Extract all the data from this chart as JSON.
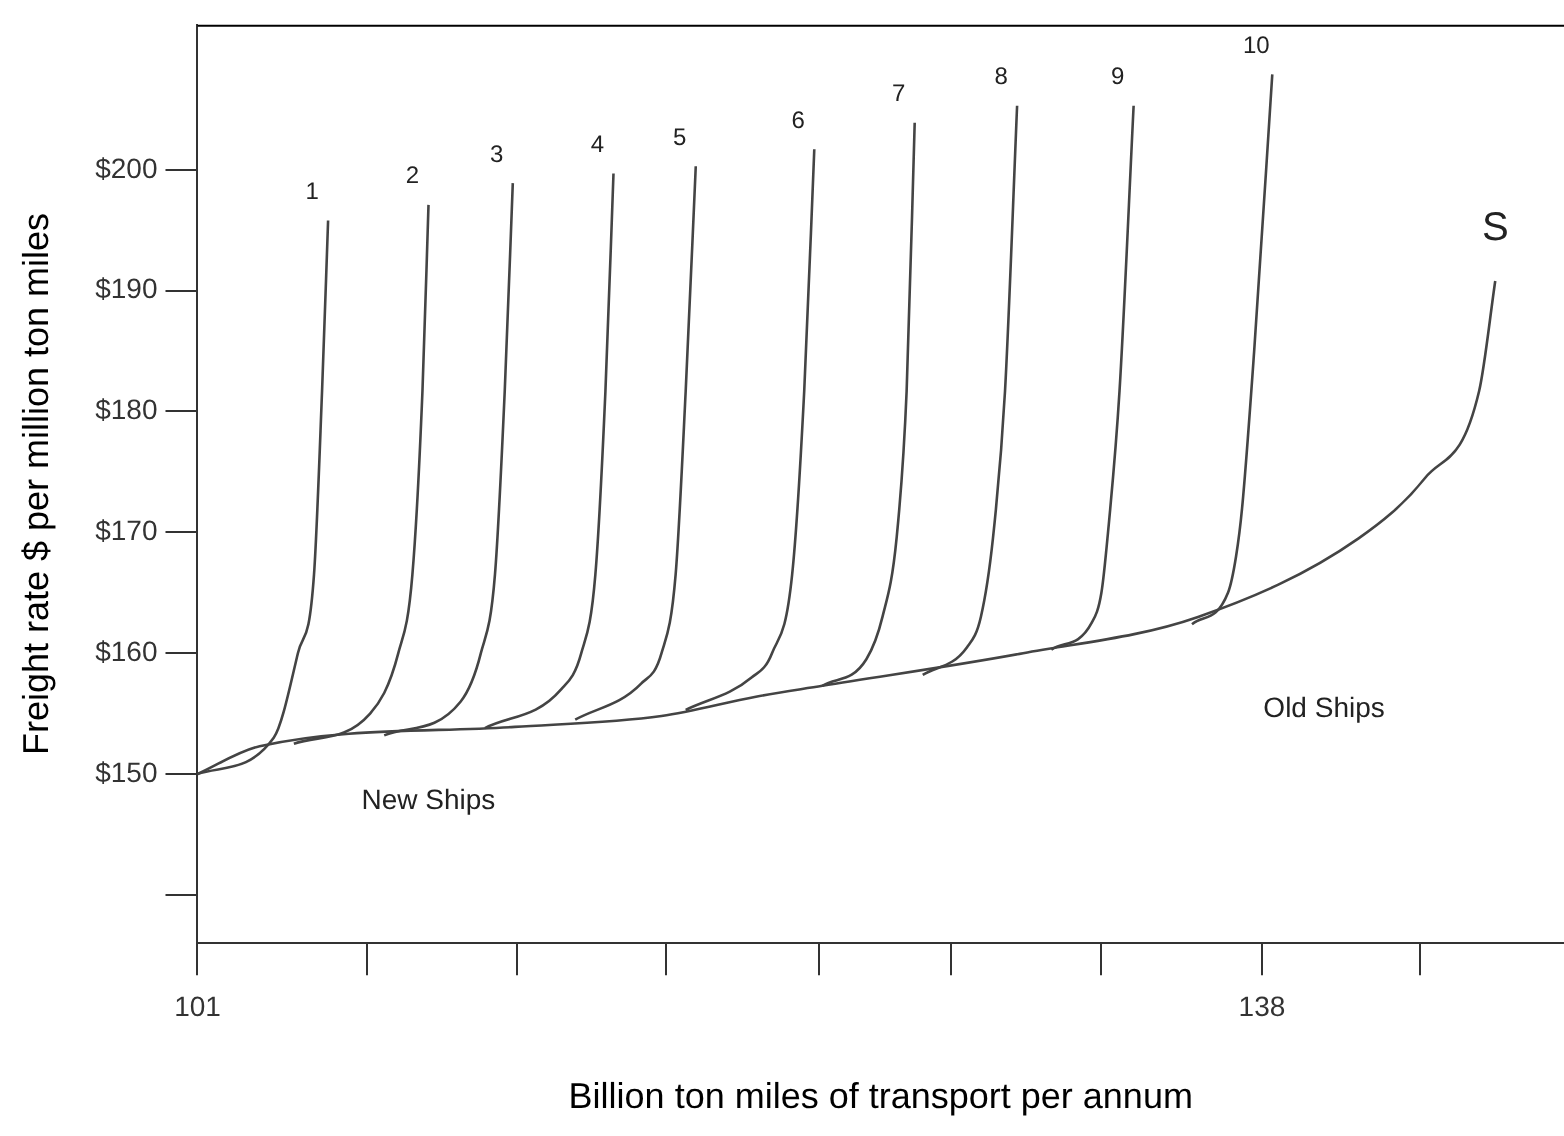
{
  "chart_data": {
    "type": "line",
    "xlabel": "Billion ton miles of transport per annum",
    "ylabel": "Freight rate $ per million ton miles",
    "xlim": [
      101,
      148.5
    ],
    "xticks": [
      101,
      {
        "value": 106.9,
        "label": null
      },
      {
        "value": 112.1,
        "label": null
      },
      {
        "value": 117.3,
        "label": null
      },
      {
        "value": 122.6,
        "label": null
      },
      {
        "value": 127.2,
        "label": null
      },
      {
        "value": 132.4,
        "label": null
      },
      138,
      {
        "value": 143.5,
        "label": null
      }
    ],
    "ylim": [
      136,
      212
    ],
    "yticks": [
      {
        "value": 140,
        "label": null
      },
      {
        "value": 150,
        "label": "$150"
      },
      {
        "value": 160,
        "label": "$160"
      },
      {
        "value": 170,
        "label": "$170"
      },
      {
        "value": 180,
        "label": "$180"
      },
      {
        "value": 190,
        "label": "$190"
      },
      {
        "value": 200,
        "label": "$200"
      }
    ],
    "grid": false,
    "legend": false,
    "marker": "none",
    "line_style": "solid",
    "series": [
      {
        "name": "S",
        "color": "#444444",
        "x": [
          101,
          103.16,
          112.03,
          117.13,
          120.41,
          122.72,
          129.7,
          135.78,
          141.36,
          143.67,
          145.55,
          146.11
        ],
        "values": [
          150,
          152.3,
          153.9,
          154.8,
          156.4,
          157.3,
          160,
          163,
          169.5,
          174.5,
          181.7,
          190.8
        ]
      },
      {
        "name": "1",
        "color": "#444444",
        "x": [
          101,
          103.65,
          104.49,
          105.05,
          105.33,
          105.54
        ],
        "values": [
          150,
          153,
          160,
          166.5,
          181.7,
          195.8
        ]
      },
      {
        "name": "2",
        "color": "#444444",
        "x": [
          104.35,
          107,
          107.98,
          108.47,
          108.82,
          109.03
        ],
        "values": [
          152.5,
          155,
          160,
          166.5,
          181.7,
          197.1
        ]
      },
      {
        "name": "3",
        "color": "#444444",
        "x": [
          107.49,
          110.15,
          110.85,
          111.34,
          111.68,
          111.96
        ],
        "values": [
          153.2,
          156,
          160,
          166.5,
          181.7,
          198.9
        ]
      },
      {
        "name": "4",
        "color": "#444444",
        "x": [
          110.99,
          113.64,
          114.34,
          114.83,
          115.18,
          115.46
        ],
        "values": [
          153.8,
          157,
          160,
          166.5,
          181.7,
          199.7
        ]
      },
      {
        "name": "5",
        "color": "#444444",
        "x": [
          114.13,
          116.43,
          117.13,
          117.62,
          117.97,
          118.32
        ],
        "values": [
          154.5,
          157.5,
          160,
          166.5,
          181.7,
          200.3
        ]
      },
      {
        "name": "6",
        "color": "#444444",
        "x": [
          117.97,
          120.27,
          120.97,
          121.67,
          122.09,
          122.44
        ],
        "values": [
          155.3,
          158,
          160,
          166.5,
          181.7,
          201.7
        ]
      },
      {
        "name": "7",
        "color": "#444444",
        "x": [
          122.72,
          124.25,
          124.81,
          125.3,
          125.65,
          125.93
        ],
        "values": [
          157.3,
          159.5,
          163,
          169.5,
          181.7,
          203.9
        ]
      },
      {
        "name": "8",
        "color": "#444444",
        "x": [
          126.21,
          127.75,
          128.23,
          128.65,
          129.07,
          129.49
        ],
        "values": [
          158.2,
          160.5,
          163,
          169.5,
          181.7,
          205.3
        ]
      },
      {
        "name": "9",
        "color": "#444444",
        "x": [
          130.68,
          132.08,
          132.42,
          132.63,
          133.05,
          133.54
        ],
        "values": [
          160.3,
          162.5,
          165,
          169.5,
          181.7,
          205.3
        ]
      },
      {
        "name": "10",
        "color": "#444444",
        "x": [
          135.57,
          136.82,
          137.1,
          137.31,
          137.73,
          138.36
        ],
        "values": [
          162.4,
          165,
          168,
          172,
          185,
          207.9
        ]
      }
    ],
    "annotations": [
      "New Ships",
      "Old Ships"
    ]
  }
}
